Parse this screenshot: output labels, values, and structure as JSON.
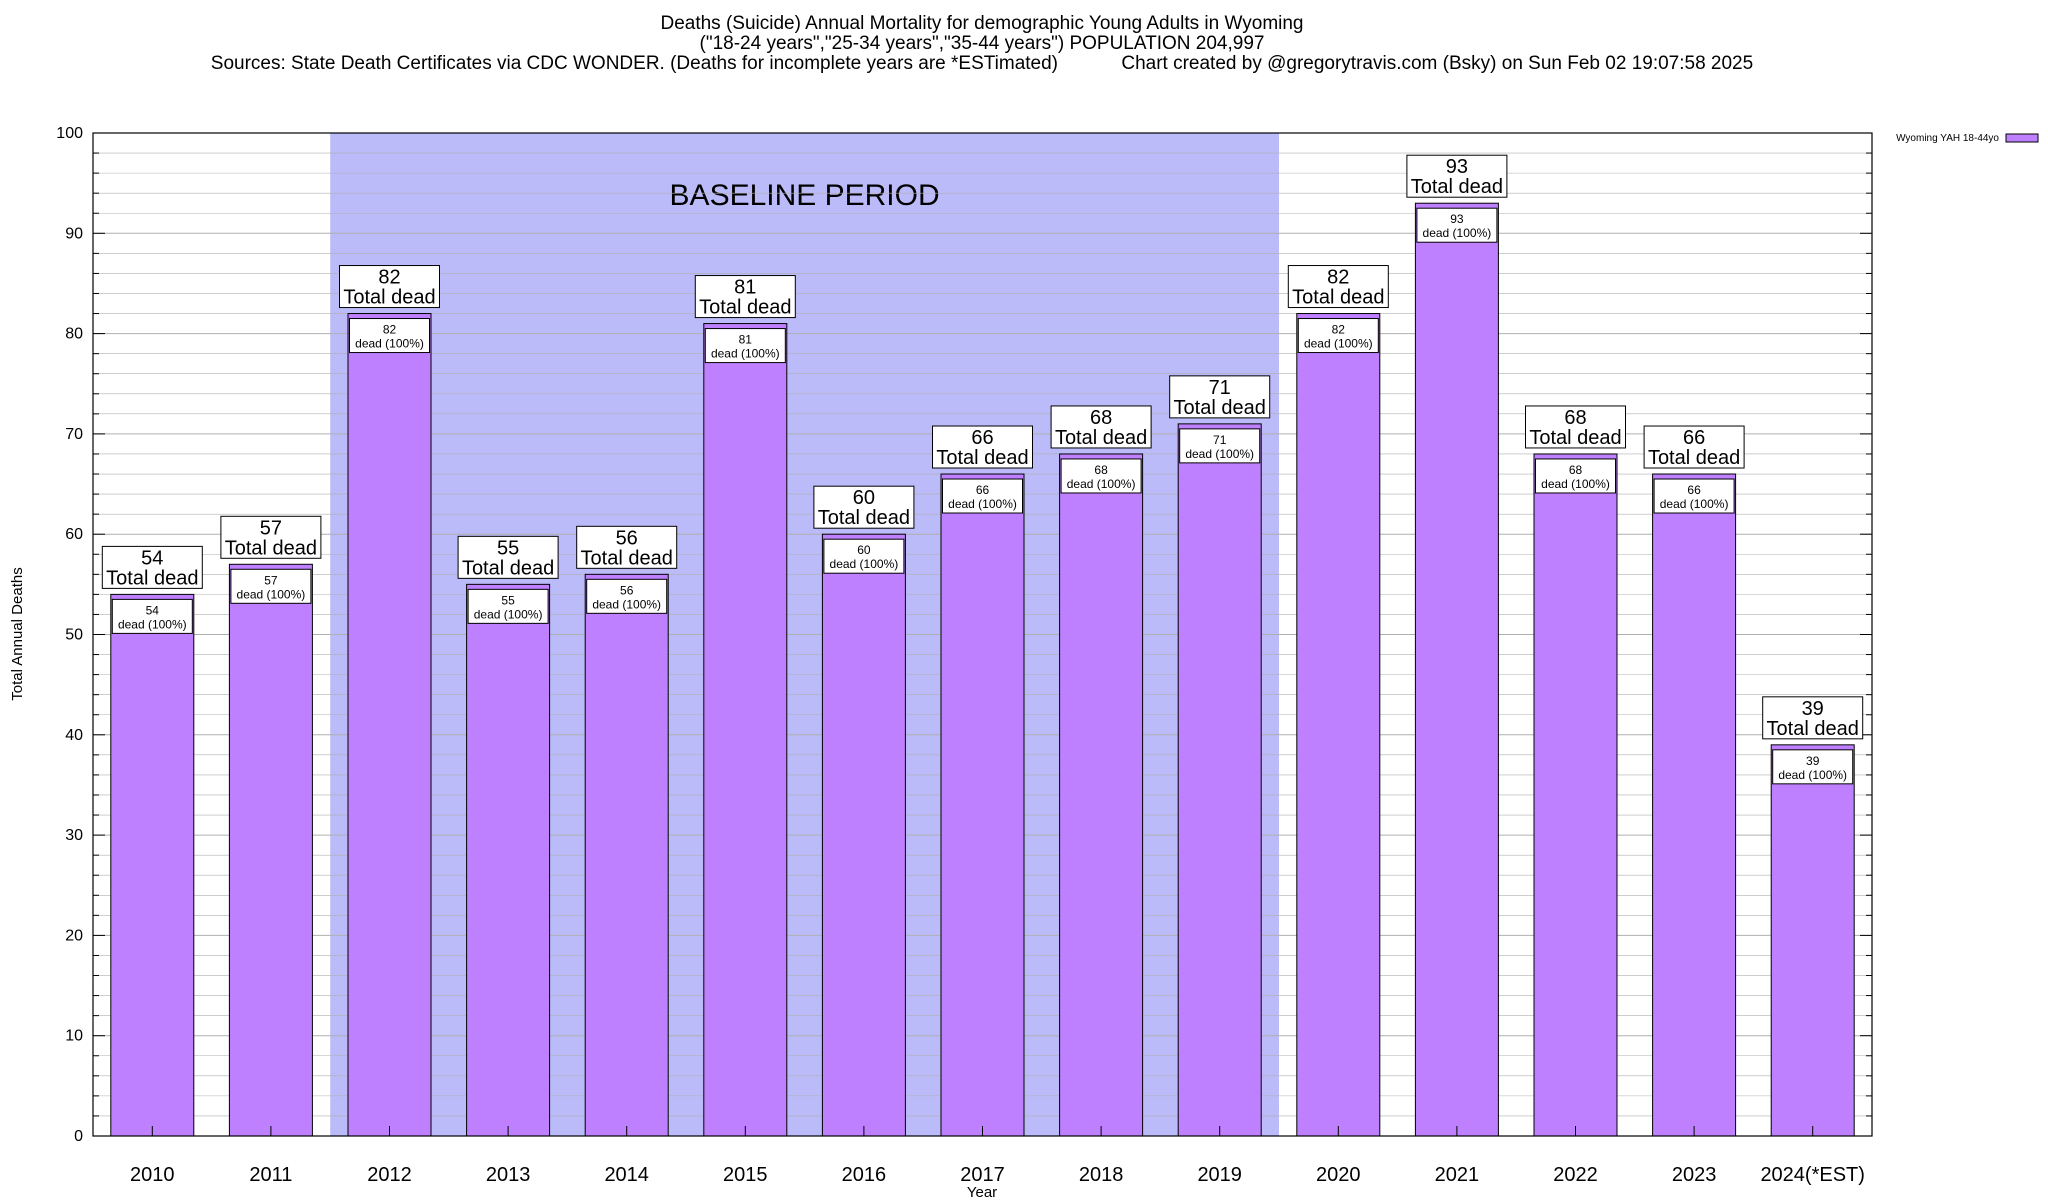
{
  "titles": {
    "line1": "Deaths (Suicide) Annual Mortality for demographic Young Adults in Wyoming",
    "line2": "(\"18-24 years\",\"25-34 years\",\"35-44 years\") POPULATION 204,997",
    "line3_left": "Sources: State Death Certificates via CDC WONDER. (Deaths for incomplete years are *ESTimated)",
    "line3_right": "Chart created by @gregorytravis.com (Bsky) on Sun Feb 02 19:07:58 2025"
  },
  "colors": {
    "bar": "#bf80ff",
    "baseline_band": "#bbbbf9",
    "grid": "#b0b0b0"
  },
  "chart_data": {
    "type": "bar",
    "xlabel": "Year",
    "ylabel": "Total Annual Deaths",
    "ylim": [
      0,
      100
    ],
    "y_ticks": [
      0,
      10,
      20,
      30,
      40,
      50,
      60,
      70,
      80,
      90,
      100
    ],
    "grid": true,
    "legend_position": "top-right",
    "categories": [
      "2010",
      "2011",
      "2012",
      "2013",
      "2014",
      "2015",
      "2016",
      "2017",
      "2018",
      "2019",
      "2020",
      "2021",
      "2022",
      "2023",
      "2024(*EST)"
    ],
    "series": [
      {
        "name": "Wyoming YAH 18-44yo",
        "values": [
          54,
          57,
          82,
          55,
          56,
          81,
          60,
          66,
          68,
          71,
          82,
          93,
          68,
          66,
          39
        ]
      }
    ],
    "total_label": "Total dead",
    "inner_label": "dead (100%)",
    "baseline_band": {
      "label": "BASELINE PERIOD",
      "from": "2012",
      "to": "2019"
    }
  }
}
